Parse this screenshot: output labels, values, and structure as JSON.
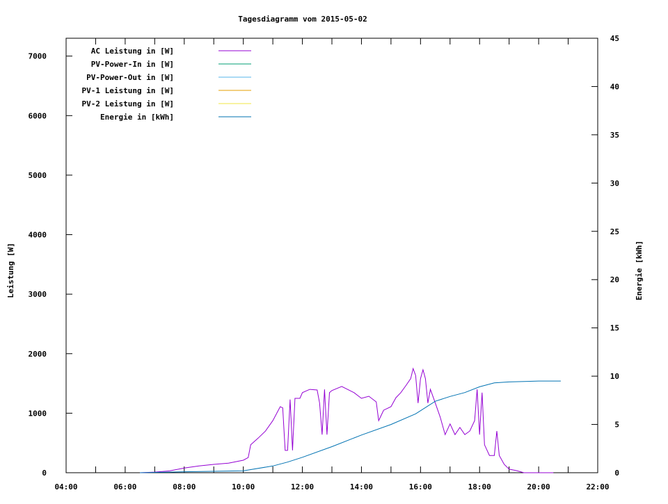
{
  "chart_data": {
    "type": "line",
    "title": "Tagesdiagramm vom 2015-05-02",
    "xlabel": "",
    "ylabel": "Leistung [W]",
    "y2label": "Energie [kWh]",
    "xlim": [
      "04:00",
      "22:00"
    ],
    "ylim": [
      0,
      7300
    ],
    "y2lim": [
      0,
      45
    ],
    "x_ticks": [
      "04:00",
      "06:00",
      "08:00",
      "10:00",
      "12:00",
      "14:00",
      "16:00",
      "18:00",
      "20:00",
      "22:00"
    ],
    "y_ticks": [
      0,
      1000,
      2000,
      3000,
      4000,
      5000,
      6000,
      7000
    ],
    "y2_ticks": [
      0,
      5,
      10,
      15,
      20,
      25,
      30,
      35,
      40,
      45
    ],
    "grid": false,
    "legend_position": "top-left",
    "series": [
      {
        "name": "AC Leistung in [W]",
        "color": "#9400d3",
        "axis": "y",
        "points": [
          [
            "06:30",
            0
          ],
          [
            "07:00",
            10
          ],
          [
            "07:30",
            30
          ],
          [
            "08:00",
            80
          ],
          [
            "08:30",
            115
          ],
          [
            "09:00",
            140
          ],
          [
            "09:30",
            160
          ],
          [
            "10:00",
            210
          ],
          [
            "10:10",
            255
          ],
          [
            "10:15",
            470
          ],
          [
            "10:30",
            580
          ],
          [
            "10:45",
            700
          ],
          [
            "11:00",
            875
          ],
          [
            "11:15",
            1110
          ],
          [
            "11:20",
            1090
          ],
          [
            "11:25",
            375
          ],
          [
            "11:30",
            375
          ],
          [
            "11:35",
            1230
          ],
          [
            "11:40",
            375
          ],
          [
            "11:45",
            1250
          ],
          [
            "11:55",
            1250
          ],
          [
            "12:00",
            1345
          ],
          [
            "12:15",
            1400
          ],
          [
            "12:30",
            1390
          ],
          [
            "12:35",
            1170
          ],
          [
            "12:40",
            640
          ],
          [
            "12:45",
            1400
          ],
          [
            "12:50",
            640
          ],
          [
            "12:55",
            1345
          ],
          [
            "13:00",
            1380
          ],
          [
            "13:20",
            1450
          ],
          [
            "13:45",
            1345
          ],
          [
            "14:00",
            1250
          ],
          [
            "14:15",
            1285
          ],
          [
            "14:30",
            1190
          ],
          [
            "14:35",
            875
          ],
          [
            "14:45",
            1050
          ],
          [
            "15:00",
            1110
          ],
          [
            "15:10",
            1260
          ],
          [
            "15:20",
            1345
          ],
          [
            "15:30",
            1460
          ],
          [
            "15:40",
            1580
          ],
          [
            "15:45",
            1750
          ],
          [
            "15:50",
            1635
          ],
          [
            "15:55",
            1170
          ],
          [
            "16:00",
            1580
          ],
          [
            "16:05",
            1730
          ],
          [
            "16:10",
            1580
          ],
          [
            "16:15",
            1170
          ],
          [
            "16:20",
            1400
          ],
          [
            "16:30",
            1170
          ],
          [
            "16:40",
            935
          ],
          [
            "16:50",
            640
          ],
          [
            "17:00",
            820
          ],
          [
            "17:10",
            640
          ],
          [
            "17:20",
            760
          ],
          [
            "17:30",
            640
          ],
          [
            "17:40",
            700
          ],
          [
            "17:50",
            875
          ],
          [
            "17:55",
            1400
          ],
          [
            "18:00",
            640
          ],
          [
            "18:05",
            1345
          ],
          [
            "18:10",
            470
          ],
          [
            "18:20",
            290
          ],
          [
            "18:30",
            290
          ],
          [
            "18:35",
            700
          ],
          [
            "18:40",
            290
          ],
          [
            "18:50",
            140
          ],
          [
            "19:00",
            60
          ],
          [
            "19:15",
            35
          ],
          [
            "19:30",
            0
          ],
          [
            "20:30",
            0
          ]
        ]
      },
      {
        "name": "PV-Power-In in [W]",
        "color": "#009e73",
        "axis": "y",
        "points": []
      },
      {
        "name": "PV-Power-Out in [W]",
        "color": "#56b4e9",
        "axis": "y",
        "points": []
      },
      {
        "name": "PV-1 Leistung in [W]",
        "color": "#e69f00",
        "axis": "y",
        "points": []
      },
      {
        "name": "PV-2 Leistung in [W]",
        "color": "#f0e442",
        "axis": "y",
        "points": []
      },
      {
        "name": "Energie in [kWh]",
        "color": "#0072b2",
        "axis": "y2",
        "points": [
          [
            "06:30",
            0
          ],
          [
            "08:00",
            0.1
          ],
          [
            "10:00",
            0.2
          ],
          [
            "11:00",
            0.7
          ],
          [
            "11:30",
            1.1
          ],
          [
            "12:00",
            1.6
          ],
          [
            "13:00",
            2.7
          ],
          [
            "14:00",
            3.9
          ],
          [
            "15:00",
            5.0
          ],
          [
            "15:50",
            6.1
          ],
          [
            "16:30",
            7.4
          ],
          [
            "17:00",
            7.9
          ],
          [
            "17:30",
            8.3
          ],
          [
            "18:00",
            8.9
          ],
          [
            "18:30",
            9.3
          ],
          [
            "19:00",
            9.4
          ],
          [
            "20:00",
            9.5
          ],
          [
            "20:45",
            9.5
          ]
        ]
      }
    ]
  }
}
